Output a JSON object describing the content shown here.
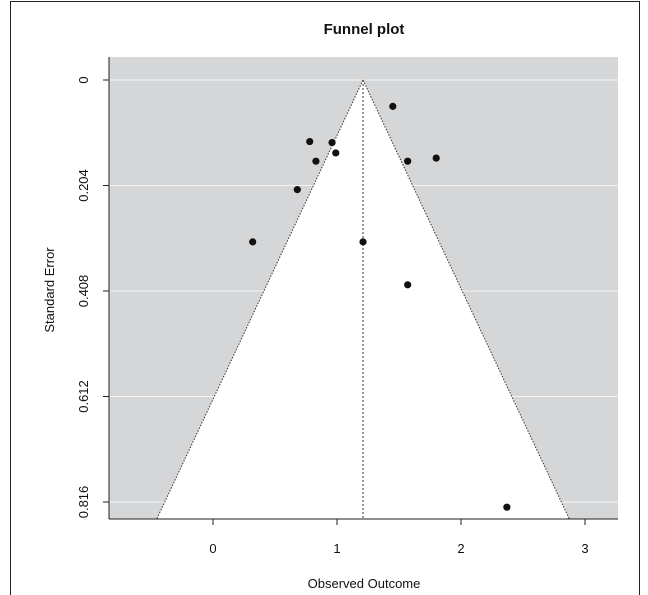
{
  "chart_data": {
    "type": "scatter",
    "title": "Funnel plot",
    "xlabel": "Observed Outcome",
    "ylabel": "Standard Error",
    "x_ticks": [
      "0",
      "1",
      "2",
      "3"
    ],
    "y_ticks": [
      "0",
      "0.204",
      "0.408",
      "0.612",
      "0.816"
    ],
    "xlim": [
      -0.8,
      3.25
    ],
    "ylim": [
      0.816,
      0
    ],
    "summary_estimate": 1.21,
    "points": [
      {
        "x": 1.45,
        "y": 0.051
      },
      {
        "x": 0.78,
        "y": 0.119
      },
      {
        "x": 0.96,
        "y": 0.121
      },
      {
        "x": 0.99,
        "y": 0.141
      },
      {
        "x": 0.83,
        "y": 0.157
      },
      {
        "x": 1.57,
        "y": 0.157
      },
      {
        "x": 1.8,
        "y": 0.151
      },
      {
        "x": 0.68,
        "y": 0.212
      },
      {
        "x": 0.32,
        "y": 0.313
      },
      {
        "x": 1.21,
        "y": 0.313
      },
      {
        "x": 1.57,
        "y": 0.396
      },
      {
        "x": 2.37,
        "y": 0.826
      }
    ],
    "background_color": "#d5d6d8",
    "funnel_color": "#ffffff",
    "grid": true,
    "grid_color": "#f4f4f4",
    "point_color": "#111111"
  }
}
